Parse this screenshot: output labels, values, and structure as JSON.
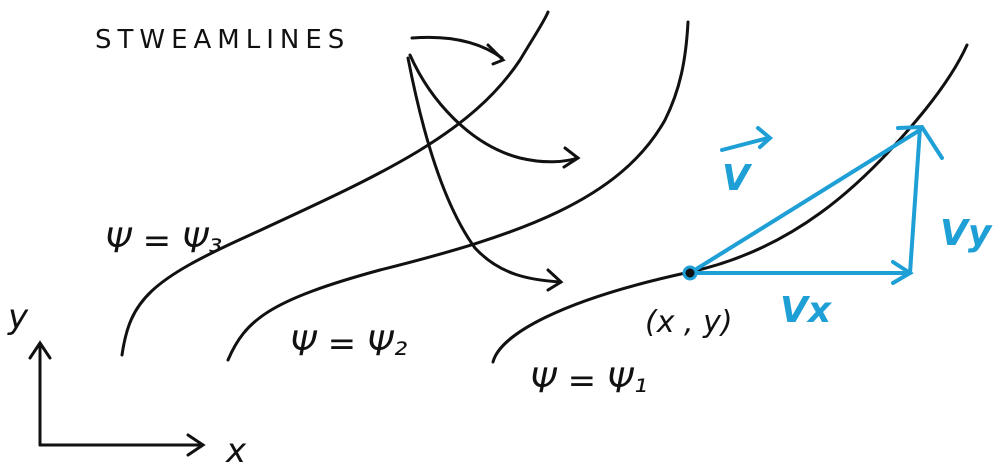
{
  "diagram": {
    "title": "STWEAMLINES",
    "streamlines": [
      {
        "label": "Ψ = Ψ₃"
      },
      {
        "label": "Ψ = Ψ₂"
      },
      {
        "label": "Ψ = Ψ₁"
      }
    ],
    "axes": {
      "x_label": "x",
      "y_label": "y"
    },
    "point_label": "(x , y)",
    "vectors": {
      "v": "V",
      "vx": "Vx",
      "vy": "Vy"
    },
    "colors": {
      "ink": "#111111",
      "accent": "#1e9fd6"
    }
  }
}
